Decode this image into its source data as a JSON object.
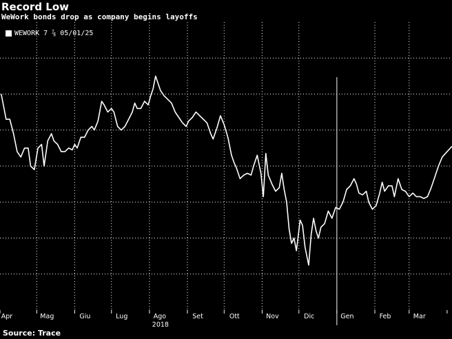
{
  "header": {
    "title": "Record Low",
    "subtitle": "WeWork bonds drop as company begins layoffs"
  },
  "footer": {
    "source": "Source: Trace"
  },
  "colors": {
    "background": "#000000",
    "line": "#ffffff",
    "grid": "#ffffff"
  },
  "chart_data": {
    "type": "line",
    "title": "Record Low",
    "subtitle": "WeWork bonds drop as company begins layoffs",
    "legend": {
      "placement": "top-left",
      "entries": [
        "WEWORK 7 ⅞ 05/01/25"
      ]
    },
    "grid": true,
    "year_label": "2018",
    "x_tick_labels": [
      "Apr",
      "Mag",
      "Giu",
      "Lug",
      "Ago",
      "Set",
      "Ott",
      "Nov",
      "Dic",
      "Gen",
      "Feb",
      "Mar",
      "Apr"
    ],
    "x_range": [
      "2018-04-01",
      "2019-04-05"
    ],
    "y_range": [
      81,
      97
    ],
    "series": [
      {
        "name": "WEWORK 7 ⅞ 05/01/25",
        "points": [
          [
            "2018-04-02",
            93.0
          ],
          [
            "2018-04-06",
            91.6
          ],
          [
            "2018-04-09",
            91.6
          ],
          [
            "2018-04-12",
            90.8
          ],
          [
            "2018-04-15",
            89.8
          ],
          [
            "2018-04-18",
            89.5
          ],
          [
            "2018-04-21",
            90.0
          ],
          [
            "2018-04-24",
            90.0
          ],
          [
            "2018-04-26",
            89.0
          ],
          [
            "2018-04-29",
            88.8
          ],
          [
            "2018-05-02",
            90.0
          ],
          [
            "2018-05-05",
            90.2
          ],
          [
            "2018-05-07",
            89.0
          ],
          [
            "2018-05-10",
            90.4
          ],
          [
            "2018-05-13",
            90.8
          ],
          [
            "2018-05-15",
            90.4
          ],
          [
            "2018-05-18",
            90.2
          ],
          [
            "2018-05-21",
            89.8
          ],
          [
            "2018-05-24",
            89.8
          ],
          [
            "2018-05-27",
            90.0
          ],
          [
            "2018-05-30",
            89.9
          ],
          [
            "2018-06-01",
            90.2
          ],
          [
            "2018-06-03",
            90.0
          ],
          [
            "2018-06-06",
            90.6
          ],
          [
            "2018-06-09",
            90.6
          ],
          [
            "2018-06-12",
            91.0
          ],
          [
            "2018-06-15",
            91.2
          ],
          [
            "2018-06-17",
            91.0
          ],
          [
            "2018-06-20",
            91.5
          ],
          [
            "2018-06-23",
            92.6
          ],
          [
            "2018-06-25",
            92.4
          ],
          [
            "2018-06-28",
            92.0
          ],
          [
            "2018-07-01",
            92.2
          ],
          [
            "2018-07-03",
            92.0
          ],
          [
            "2018-07-06",
            91.2
          ],
          [
            "2018-07-09",
            91.0
          ],
          [
            "2018-07-12",
            91.2
          ],
          [
            "2018-07-15",
            91.6
          ],
          [
            "2018-07-18",
            92.0
          ],
          [
            "2018-07-20",
            92.5
          ],
          [
            "2018-07-22",
            92.2
          ],
          [
            "2018-07-25",
            92.2
          ],
          [
            "2018-07-28",
            92.6
          ],
          [
            "2018-07-31",
            92.4
          ],
          [
            "2018-08-02",
            92.9
          ],
          [
            "2018-08-04",
            93.3
          ],
          [
            "2018-08-06",
            94.0
          ],
          [
            "2018-08-08",
            93.6
          ],
          [
            "2018-08-10",
            93.2
          ],
          [
            "2018-08-13",
            92.9
          ],
          [
            "2018-08-16",
            92.7
          ],
          [
            "2018-08-19",
            92.5
          ],
          [
            "2018-08-22",
            92.0
          ],
          [
            "2018-08-25",
            91.7
          ],
          [
            "2018-08-28",
            91.4
          ],
          [
            "2018-08-31",
            91.2
          ],
          [
            "2018-09-02",
            91.5
          ],
          [
            "2018-09-05",
            91.7
          ],
          [
            "2018-09-08",
            92.0
          ],
          [
            "2018-09-11",
            91.8
          ],
          [
            "2018-09-14",
            91.6
          ],
          [
            "2018-09-17",
            91.4
          ],
          [
            "2018-09-20",
            90.8
          ],
          [
            "2018-09-22",
            90.5
          ],
          [
            "2018-09-25",
            91.1
          ],
          [
            "2018-09-28",
            91.8
          ],
          [
            "2018-10-01",
            91.3
          ],
          [
            "2018-10-04",
            90.6
          ],
          [
            "2018-10-07",
            89.6
          ],
          [
            "2018-10-09",
            89.2
          ],
          [
            "2018-10-11",
            88.9
          ],
          [
            "2018-10-14",
            88.3
          ],
          [
            "2018-10-17",
            88.5
          ],
          [
            "2018-10-20",
            88.6
          ],
          [
            "2018-10-23",
            88.5
          ],
          [
            "2018-10-25",
            89.0
          ],
          [
            "2018-10-28",
            89.6
          ],
          [
            "2018-10-31",
            88.6
          ],
          [
            "2018-11-02",
            87.3
          ],
          [
            "2018-11-04",
            89.7
          ],
          [
            "2018-11-06",
            88.5
          ],
          [
            "2018-11-09",
            88.0
          ],
          [
            "2018-11-12",
            87.6
          ],
          [
            "2018-11-15",
            87.8
          ],
          [
            "2018-11-17",
            88.6
          ],
          [
            "2018-11-19",
            87.7
          ],
          [
            "2018-11-21",
            87.0
          ],
          [
            "2018-11-23",
            85.5
          ],
          [
            "2018-11-25",
            84.7
          ],
          [
            "2018-11-27",
            85.0
          ],
          [
            "2018-11-29",
            84.3
          ],
          [
            "2018-12-02",
            86.0
          ],
          [
            "2018-12-04",
            85.7
          ],
          [
            "2018-12-06",
            84.5
          ],
          [
            "2018-12-09",
            83.5
          ],
          [
            "2018-12-11",
            85.2
          ],
          [
            "2018-12-13",
            86.1
          ],
          [
            "2018-12-15",
            85.4
          ],
          [
            "2018-12-17",
            85.0
          ],
          [
            "2018-12-19",
            85.6
          ],
          [
            "2018-12-22",
            85.8
          ],
          [
            "2018-12-25",
            86.5
          ],
          [
            "2018-12-28",
            86.1
          ],
          [
            "2018-12-31",
            86.7
          ],
          [
            "2019-01-03",
            86.6
          ],
          [
            "2019-01-06",
            87.0
          ],
          [
            "2019-01-09",
            87.7
          ],
          [
            "2019-01-12",
            87.9
          ],
          [
            "2019-01-15",
            88.3
          ],
          [
            "2019-01-17",
            88.0
          ],
          [
            "2019-01-19",
            87.5
          ],
          [
            "2019-01-22",
            87.4
          ],
          [
            "2019-01-25",
            87.6
          ],
          [
            "2019-01-27",
            87.0
          ],
          [
            "2019-01-30",
            86.6
          ],
          [
            "2019-02-02",
            86.8
          ],
          [
            "2019-02-05",
            87.5
          ],
          [
            "2019-02-07",
            88.1
          ],
          [
            "2019-02-09",
            87.6
          ],
          [
            "2019-02-12",
            87.9
          ],
          [
            "2019-02-15",
            87.9
          ],
          [
            "2019-02-17",
            87.3
          ],
          [
            "2019-02-20",
            88.3
          ],
          [
            "2019-02-23",
            87.7
          ],
          [
            "2019-02-26",
            87.6
          ],
          [
            "2019-03-01",
            87.3
          ],
          [
            "2019-03-04",
            87.5
          ],
          [
            "2019-03-07",
            87.3
          ],
          [
            "2019-03-10",
            87.3
          ],
          [
            "2019-03-13",
            87.2
          ],
          [
            "2019-03-16",
            87.3
          ],
          [
            "2019-03-19",
            87.8
          ],
          [
            "2019-03-22",
            88.4
          ],
          [
            "2019-03-25",
            89.0
          ],
          [
            "2019-03-28",
            89.5
          ],
          [
            "2019-04-01",
            89.8
          ],
          [
            "2019-04-05",
            90.1
          ]
        ]
      }
    ]
  }
}
